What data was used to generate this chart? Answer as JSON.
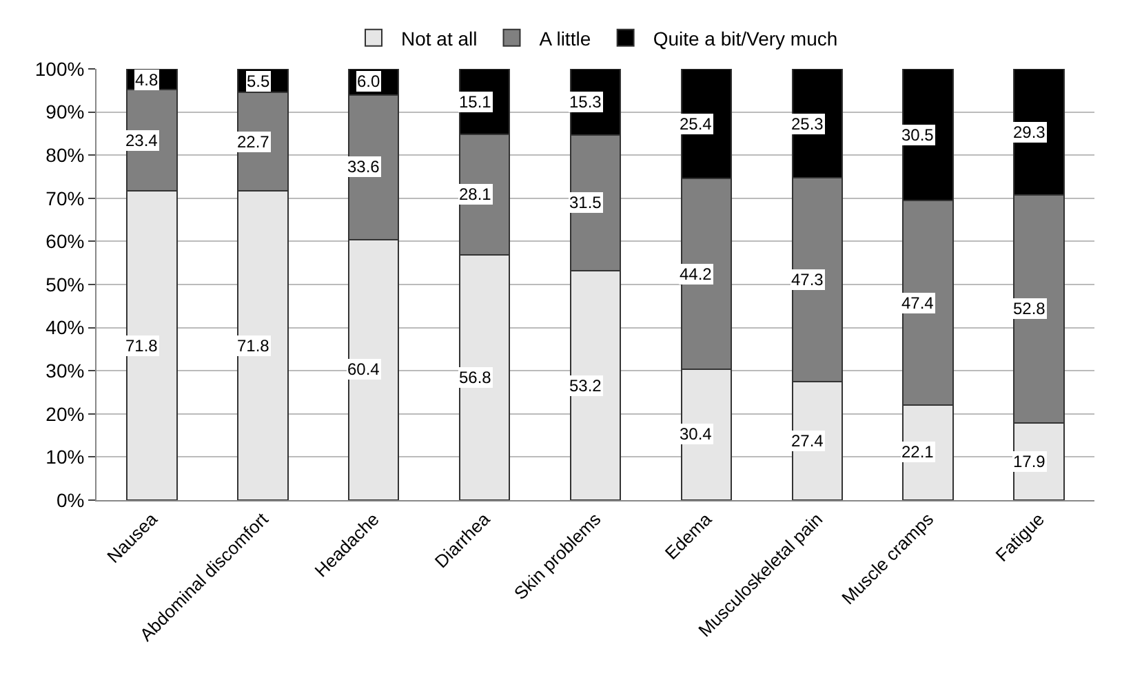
{
  "chart_data": {
    "type": "bar",
    "stacked": true,
    "categories": [
      "Nausea",
      "Abdominal discomfort",
      "Headache",
      "Diarrhea",
      "Skin problems",
      "Edema",
      "Musculoskeletal pain",
      "Muscle cramps",
      "Fatigue"
    ],
    "series": [
      {
        "name": "Not at all",
        "color": "#e6e6e6",
        "values": [
          71.8,
          71.8,
          60.4,
          56.8,
          53.2,
          30.4,
          27.4,
          22.1,
          17.9
        ],
        "value_labels": [
          "71.8",
          "71.8",
          "60.4",
          "56.8",
          "53.2",
          "30.4",
          "27.4",
          "22.1",
          "17.9"
        ]
      },
      {
        "name": "A little",
        "color": "#808080",
        "values": [
          23.4,
          22.7,
          33.6,
          28.1,
          31.5,
          44.2,
          47.3,
          47.4,
          52.8
        ],
        "value_labels": [
          "23.4",
          "22.7",
          "33.6",
          "28.1",
          "31.5",
          "44.2",
          "47.3",
          "47.4",
          "52.8"
        ]
      },
      {
        "name": "Quite a bit/Very much",
        "color": "#000000",
        "values": [
          4.8,
          5.5,
          6.0,
          15.1,
          15.3,
          25.4,
          25.3,
          30.5,
          29.3
        ],
        "value_labels": [
          "4.8",
          "5.5",
          "6.0",
          "15.1",
          "15.3",
          "25.4",
          "25.3",
          "30.5",
          "29.3"
        ]
      }
    ],
    "ylim": [
      0,
      100
    ],
    "yticks": [
      {
        "value": 0,
        "label": "0%"
      },
      {
        "value": 10,
        "label": "10%"
      },
      {
        "value": 20,
        "label": "20%"
      },
      {
        "value": 30,
        "label": "30%"
      },
      {
        "value": 40,
        "label": "40%"
      },
      {
        "value": 50,
        "label": "50%"
      },
      {
        "value": 60,
        "label": "60%"
      },
      {
        "value": 70,
        "label": "70%"
      },
      {
        "value": 80,
        "label": "80%"
      },
      {
        "value": 90,
        "label": "90%"
      },
      {
        "value": 100,
        "label": "100%"
      }
    ],
    "grid": "y",
    "legend": "top"
  }
}
